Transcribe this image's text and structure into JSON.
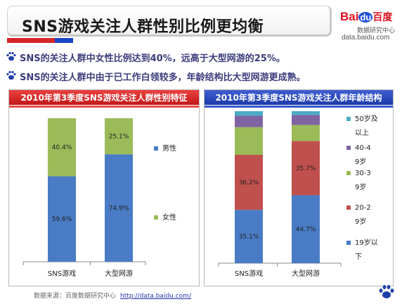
{
  "header": {
    "title": "SNS游戏关注人群性别比例更均衡",
    "logo_bai": "Bai",
    "logo_du": "du",
    "logo_cn": "百度",
    "logo_sub": "数据研究中心",
    "logo_url": "data.baidu.com"
  },
  "bullets": [
    "SNS的关注人群中女性比例达到40%，远高于大型网游的25%。",
    "SNS的关注人群中由于已工作白领较多，年龄结构比大型网游更成熟。"
  ],
  "colors": {
    "blue": "#4a7cc6",
    "green": "#9bbb59",
    "red": "#c0504d",
    "purple": "#8064a2",
    "cyan": "#4bacc6"
  },
  "chart_data": [
    {
      "type": "bar",
      "stacked": true,
      "title": "2010年第3季度SNS游戏关注人群性别特征",
      "categories": [
        "SNS游戏",
        "大型网游"
      ],
      "series": [
        {
          "name": "男性",
          "values": [
            59.6,
            74.9
          ],
          "labels": [
            "59.6%",
            "74.9%"
          ],
          "color": "#4a7cc6"
        },
        {
          "name": "女性",
          "values": [
            40.4,
            25.1
          ],
          "labels": [
            "40.4%",
            "25.1%"
          ],
          "color": "#9bbb59"
        }
      ],
      "ylim": [
        0,
        100
      ],
      "legend": "right"
    },
    {
      "type": "bar",
      "stacked": true,
      "title": "2010年第3季度SNS游戏关注人群年龄结构",
      "categories": [
        "SNS游戏",
        "大型网游"
      ],
      "series": [
        {
          "name": "19岁以下",
          "values": [
            35.1,
            44.7
          ],
          "labels": [
            "35.1%",
            "44.7%"
          ],
          "color": "#4a7cc6"
        },
        {
          "name": "20-29岁",
          "values": [
            36.2,
            35.7
          ],
          "labels": [
            "36.2%",
            "35.7%"
          ],
          "color": "#c0504d"
        },
        {
          "name": "30-39岁",
          "values": [
            18.2,
            10.5
          ],
          "labels": [
            "",
            ""
          ],
          "color": "#9bbb59"
        },
        {
          "name": "40-49岁",
          "values": [
            7.5,
            6.6
          ],
          "labels": [
            "",
            ""
          ],
          "color": "#8064a2"
        },
        {
          "name": "50岁及以上",
          "values": [
            3.0,
            2.5
          ],
          "labels": [
            "",
            ""
          ],
          "color": "#4bacc6"
        }
      ],
      "ylim": [
        0,
        100
      ],
      "legend": "right"
    }
  ],
  "footer": {
    "source": "数据来源：百度数据研究中心",
    "link": "http://data.baidu.com/"
  }
}
